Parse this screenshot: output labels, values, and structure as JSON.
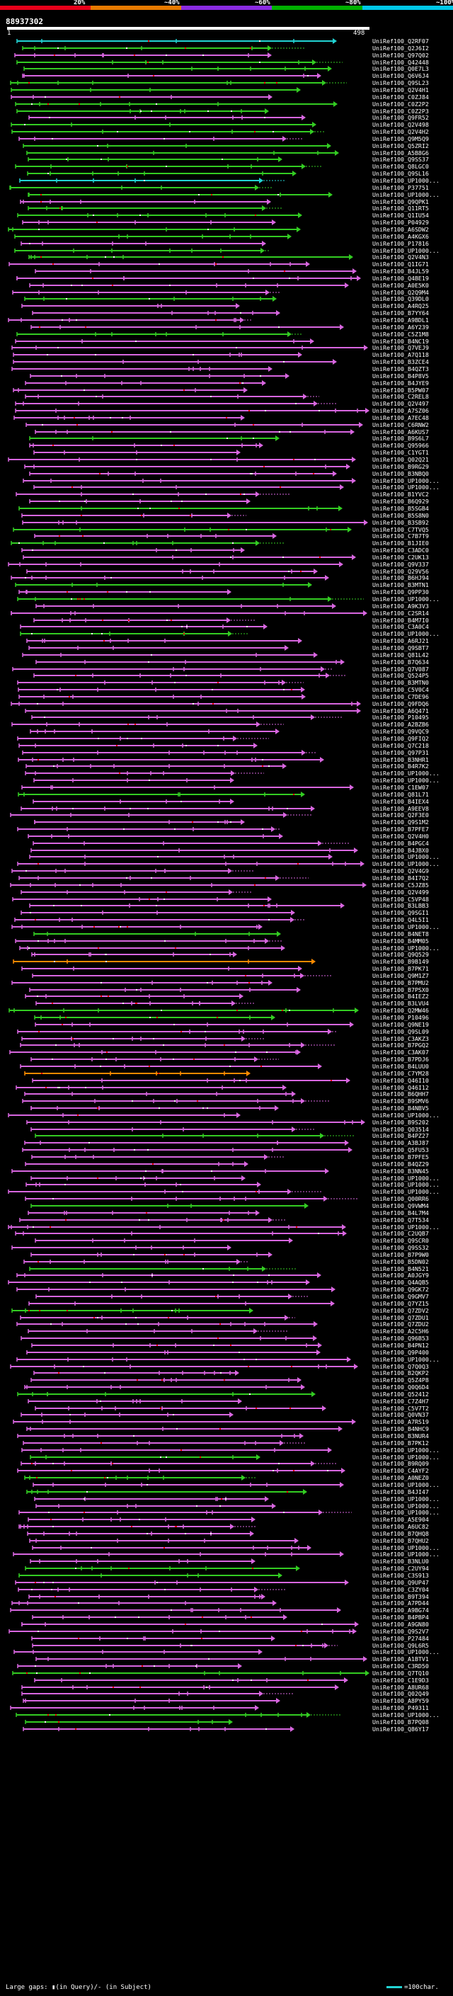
{
  "scale": {
    "ticks": [
      "20%",
      "~40%",
      "~60%",
      "~80%",
      "~100%"
    ],
    "colors": [
      "#e8001a",
      "#e87a00",
      "#8a2be2",
      "#00b000",
      "#00c8e8"
    ]
  },
  "query": {
    "id": "88937302",
    "start": "1",
    "end": "498"
  },
  "colors": {
    "magenta": "#d866e0",
    "green": "#33cc22",
    "cyan": "#22d4d4",
    "orange": "#ff8a00",
    "gap_query": "#ff0000",
    "gap_subject": "#ffffff"
  },
  "legend": {
    "text": "Large gaps: ▮(in Query)/- (in Subject)",
    "key": "=100char."
  },
  "hits": [
    "UniRef100_Q2RF07",
    "UniRef100_Q2J6I2",
    "UniRef100_Q97Q02",
    "UniRef100_Q42448",
    "UniRef100_Q0E7L3",
    "UniRef100_Q6V6J4",
    "UniRef100_Q9SL23",
    "UniRef100_Q2V4H1",
    "UniRef100_C0ZJ84",
    "UniRef100_C0Z2P2",
    "UniRef100_C0Z2P3",
    "UniRef100_Q9FR52",
    "UniRef100_Q2V498",
    "UniRef100_Q2V4H2",
    "UniRef100_Q9M5Q9",
    "UniRef100_Q5ZRI2",
    "UniRef100_A5B8G6",
    "UniRef100_Q9SS37",
    "UniRef100_Q8LGC0",
    "UniRef100_Q9SL16",
    "UniRef100_UP1000...",
    "UniRef100_P37751",
    "UniRef100_UP1000...",
    "UniRef100_Q9QPK1",
    "UniRef100_Q11RT5",
    "UniRef100_Q1IU54",
    "UniRef100_P04929",
    "UniRef100_A6SDW2",
    "UniRef100_A4KGX6",
    "UniRef100_P17816",
    "UniRef100_UP1000...",
    "UniRef100_Q2V4N3",
    "UniRef100_Q1IG71",
    "UniRef100_B4JL59",
    "UniRef100_Q4BE19",
    "UniRef100_A0E5K0",
    "UniRef100_Q2Q9M4",
    "UniRef100_Q39DL0",
    "UniRef100_A4RQ25",
    "UniRef100_B7YY64",
    "UniRef100_A9BDL1",
    "UniRef100_A6Y239",
    "UniRef100_C5Z1M8",
    "UniRef100_B4NC19",
    "UniRef100_Q7VEJ9",
    "UniRef100_A7Q118",
    "UniRef100_B3ZCE4",
    "UniRef100_B4QZT3",
    "UniRef100_B4P8V5",
    "UniRef100_B4JYE9",
    "UniRef100_B5PW07",
    "UniRef100_C2REL8",
    "UniRef100_Q2V497",
    "UniRef100_A7SZ06",
    "UniRef100_A7EC48",
    "UniRef100_C6RNW2",
    "UniRef100_A6KUS7",
    "UniRef100_B9S6L7",
    "UniRef100_Q95966",
    "UniRef100_C1YGT1",
    "UniRef100_Q02Q21",
    "UniRef100_B9RG29",
    "UniRef100_B3NBQ0",
    "UniRef100_UP1000...",
    "UniRef100_UP1000...",
    "UniRef100_B1YVC2",
    "UniRef100_B6Q929",
    "UniRef100_B5SGB4",
    "UniRef100_B5S8N0",
    "UniRef100_B3SB92",
    "UniRef100_C7TVQ5",
    "UniRef100_C7B7T9",
    "UniRef100_B1JIE0",
    "UniRef100_C3ADC0",
    "UniRef100_C2UK13",
    "UniRef100_Q9V337",
    "UniRef100_Q29V56",
    "UniRef100_B6HJ94",
    "UniRef100_B3MTN1",
    "UniRef100_Q9PP30",
    "UniRef100_UP1000...",
    "UniRef100_A9K3V3",
    "UniRef100_C2SR14",
    "UniRef100_B4M7I0",
    "UniRef100_C3A0C4",
    "UniRef100_UP1000...",
    "UniRef100_A6RJ21",
    "UniRef100_Q9SBT7",
    "UniRef100_Q81L42",
    "UniRef100_B7Q634",
    "UniRef100_Q7V087",
    "UniRef100_Q524P5",
    "UniRef100_B3MTN0",
    "UniRef100_C5V0C4",
    "UniRef100_C7DE96",
    "UniRef100_Q9FDQ6",
    "UniRef100_A6Q471",
    "UniRef100_P10495",
    "UniRef100_A2BZB6",
    "UniRef100_Q9VQC9",
    "UniRef100_Q9FIQ2",
    "UniRef100_Q7C218",
    "UniRef100_Q97P31",
    "UniRef100_B3NHR1",
    "UniRef100_B4R7K2",
    "UniRef100_UP1000...",
    "UniRef100_UP1000...",
    "UniRef100_C1EW07",
    "UniRef100_Q81L71",
    "UniRef100_B4IEX4",
    "UniRef100_A9EEV8",
    "UniRef100_Q2F3E0",
    "UniRef100_Q9S1M2",
    "UniRef100_B7PFE7",
    "UniRef100_Q2V4H0",
    "UniRef100_B4PGC4",
    "UniRef100_B4JBX0",
    "UniRef100_UP1000...",
    "UniRef100_UP1000...",
    "UniRef100_Q2V4G9",
    "UniRef100_B4I7Q2",
    "UniRef100_C5JZ85",
    "UniRef100_Q2V499",
    "UniRef100_C5VP48",
    "UniRef100_B3LBB3",
    "UniRef100_Q9SGI1",
    "UniRef100_Q4L5I1",
    "UniRef100_UP1000...",
    "UniRef100_B4NET8",
    "UniRef100_B4MM05",
    "UniRef100_UP1000...",
    "UniRef100_Q9Q529",
    "UniRef100_B9B149",
    "UniRef100_B7PK71",
    "UniRef100_Q9M1Z7",
    "UniRef100_B7PMU2",
    "UniRef100_B7PSX0",
    "UniRef100_B4IEZ2",
    "UniRef100_B3LVU4",
    "UniRef100_Q2MW46",
    "UniRef100_P10496",
    "UniRef100_Q9NE19",
    "UniRef100_Q9SL09",
    "UniRef100_C3AKZ3",
    "UniRef100_B7PGQ2",
    "UniRef100_C3AK07",
    "UniRef100_B7PDJ6",
    "UniRef100_B4LUU0",
    "UniRef100_C7YM28",
    "UniRef100_Q46I10",
    "UniRef100_Q46I12",
    "UniRef100_B6QHH7",
    "UniRef100_B9SMV6",
    "UniRef100_B4NBV5",
    "UniRef100_UP1000...",
    "UniRef100_B9S202",
    "UniRef100_Q03514",
    "UniRef100_B4PZ27",
    "UniRef100_A3BJ87",
    "UniRef100_Q5FU53",
    "UniRef100_B7PFE5",
    "UniRef100_B4QZ29",
    "UniRef100_B3NN45",
    "UniRef100_UP1000...",
    "UniRef100_UP1000...",
    "UniRef100_UP1000...",
    "UniRef100_Q00RR6",
    "UniRef100_Q9VWM4",
    "UniRef100_B4L7M4",
    "UniRef100_Q7T534",
    "UniRef100_UP1000...",
    "UniRef100_C2UQB7",
    "UniRef100_Q9SCR0",
    "UniRef100_Q9SS32",
    "UniRef100_B7P9W0",
    "UniRef100_B5DN02",
    "UniRef100_B4N521",
    "UniRef100_A0JGY9",
    "UniRef100_Q4AQB5",
    "UniRef100_Q9GK72",
    "UniRef100_Q9GMV7",
    "UniRef100_Q7YZ15",
    "UniRef100_Q7ZDV2",
    "UniRef100_Q7ZDU1",
    "UniRef100_Q7ZDU2",
    "UniRef100_A2C5H6",
    "UniRef100_Q96B53",
    "UniRef100_B4PN12",
    "UniRef100_Q9P400",
    "UniRef100_UP1000...",
    "UniRef100_Q7Q0Q3",
    "UniRef100_B2QKP2",
    "UniRef100_Q5Z4P8",
    "UniRef100_Q0Q6D4",
    "UniRef100_Q52412",
    "UniRef100_C7Z4H7",
    "UniRef100_C5V7T2",
    "UniRef100_Q0VN37",
    "UniRef100_A7RS19",
    "UniRef100_B4NHC9",
    "UniRef100_B3NUR4",
    "UniRef100_B7PK12",
    "UniRef100_UP1000...",
    "UniRef100_UP1000...",
    "UniRef100_B9RQ09",
    "UniRef100_C4AYF2",
    "UniRef100_A0NEZ0",
    "UniRef100_UP1000...",
    "UniRef100_B4JI47",
    "UniRef100_UP1000...",
    "UniRef100_UP1000...",
    "UniRef100_UP1000...",
    "UniRef100_A5E904",
    "UniRef100_A6UC82",
    "UniRef100_B7QHQ8",
    "UniRef100_B7QHU2",
    "UniRef100_UP1000...",
    "UniRef100_UP1000...",
    "UniRef100_B3NLU0",
    "UniRef100_C2UY94",
    "UniRef100_C3S913",
    "UniRef100_Q9UP47",
    "UniRef100_C3ZY04",
    "UniRef100_B9T394",
    "UniRef100_A7PD44",
    "UniRef100_A9BG74",
    "UniRef100_B4PBP4",
    "UniRef100_A9GN80",
    "UniRef100_Q9S2V7",
    "UniRef100_P27484",
    "UniRef100_Q9L6R5",
    "UniRef100_UP1000...",
    "UniRef100_A1BTV1",
    "UniRef100_C3RD50",
    "UniRef100_Q7TQ10",
    "UniRef100_C1E9D3",
    "UniRef100_A8UR68",
    "UniRef100_Q02Q49",
    "UniRef100_A8PY59",
    "UniRef100_P49311",
    "UniRef100_UP1000...",
    "UniRef100_B7PQ08",
    "UniRef100_Q86Y17"
  ]
}
